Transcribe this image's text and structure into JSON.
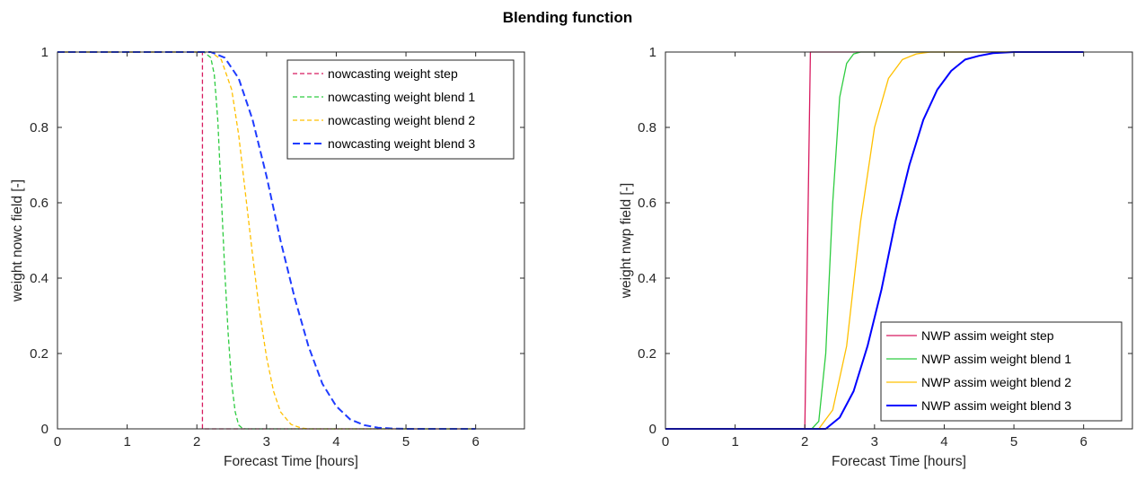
{
  "figure_title": "Blending function",
  "chart_data": [
    {
      "type": "line",
      "xlabel": "Forecast Time [hours]",
      "ylabel": "weight nowc field [-]",
      "xlim": [
        0,
        6.7
      ],
      "ylim": [
        0,
        1
      ],
      "xticks": [
        "0",
        "1",
        "2",
        "3",
        "4",
        "5",
        "6"
      ],
      "yticks": [
        "0",
        "0.2",
        "0.4",
        "0.6",
        "0.8",
        "1"
      ],
      "grid": false,
      "legend_position": "top-right",
      "series": [
        {
          "name": "nowcasting weight step",
          "color": "#d81b60",
          "style": "dashed",
          "width": 1.3,
          "x": [
            0,
            2.08,
            2.08,
            6.0
          ],
          "y": [
            1,
            1,
            0,
            0
          ]
        },
        {
          "name": "nowcasting weight blend 1",
          "color": "#2ecc40",
          "style": "dashed",
          "width": 1.3,
          "x": [
            0,
            2.1,
            2.2,
            2.25,
            2.3,
            2.35,
            2.4,
            2.45,
            2.5,
            2.55,
            2.6,
            2.65,
            2.7,
            6.0
          ],
          "y": [
            1,
            1,
            0.985,
            0.94,
            0.82,
            0.62,
            0.42,
            0.25,
            0.12,
            0.045,
            0.01,
            0.002,
            0,
            0
          ]
        },
        {
          "name": "nowcasting weight blend 2",
          "color": "#ffc000",
          "style": "dashed",
          "width": 1.3,
          "x": [
            0,
            2.2,
            2.35,
            2.5,
            2.6,
            2.7,
            2.8,
            2.9,
            3.0,
            3.1,
            3.2,
            3.35,
            3.5,
            3.6,
            6.0
          ],
          "y": [
            1,
            1,
            0.98,
            0.9,
            0.78,
            0.62,
            0.46,
            0.31,
            0.19,
            0.1,
            0.045,
            0.012,
            0.002,
            0,
            0
          ]
        },
        {
          "name": "nowcasting weight blend 3",
          "color": "#1f3cff",
          "style": "dashed",
          "width": 2,
          "x": [
            0,
            2.2,
            2.4,
            2.6,
            2.8,
            3.0,
            3.2,
            3.4,
            3.6,
            3.8,
            4.0,
            4.2,
            4.4,
            4.6,
            4.8,
            5.0,
            6.0
          ],
          "y": [
            1,
            1,
            0.985,
            0.93,
            0.82,
            0.67,
            0.5,
            0.35,
            0.22,
            0.12,
            0.06,
            0.025,
            0.01,
            0.003,
            0.001,
            0,
            0
          ]
        }
      ]
    },
    {
      "type": "line",
      "xlabel": "Forecast Time [hours]",
      "ylabel": "weight nwp field [-]",
      "xlim": [
        0,
        6.7
      ],
      "ylim": [
        0,
        1
      ],
      "xticks": [
        "0",
        "1",
        "2",
        "3",
        "4",
        "5",
        "6"
      ],
      "yticks": [
        "0",
        "0.2",
        "0.4",
        "0.6",
        "0.8",
        "1"
      ],
      "grid": false,
      "legend_position": "bottom-right",
      "series": [
        {
          "name": "NWP assim weight step",
          "color": "#d81b60",
          "style": "solid",
          "width": 1.3,
          "x": [
            0,
            2.0,
            2.08,
            5.6
          ],
          "y": [
            0,
            0,
            1,
            1
          ]
        },
        {
          "name": "NWP assim weight blend 1",
          "color": "#2ecc40",
          "style": "solid",
          "width": 1.3,
          "x": [
            0,
            2.1,
            2.2,
            2.3,
            2.4,
            2.5,
            2.6,
            2.7,
            2.8,
            6.0
          ],
          "y": [
            0,
            0,
            0.02,
            0.2,
            0.6,
            0.88,
            0.97,
            0.995,
            1,
            1
          ]
        },
        {
          "name": "NWP assim weight blend 2",
          "color": "#ffc000",
          "style": "solid",
          "width": 1.3,
          "x": [
            0,
            2.2,
            2.4,
            2.6,
            2.8,
            3.0,
            3.2,
            3.4,
            3.6,
            3.8,
            6.0
          ],
          "y": [
            0,
            0,
            0.05,
            0.22,
            0.55,
            0.8,
            0.93,
            0.98,
            0.995,
            1,
            1
          ]
        },
        {
          "name": "NWP assim weight blend 3",
          "color": "#0000ff",
          "style": "solid",
          "width": 2,
          "x": [
            0,
            2.3,
            2.5,
            2.7,
            2.9,
            3.1,
            3.3,
            3.5,
            3.7,
            3.9,
            4.1,
            4.3,
            4.5,
            4.7,
            5.0,
            6.0
          ],
          "y": [
            0,
            0,
            0.03,
            0.1,
            0.22,
            0.37,
            0.55,
            0.7,
            0.82,
            0.9,
            0.95,
            0.98,
            0.99,
            0.997,
            1,
            1
          ]
        }
      ]
    }
  ]
}
